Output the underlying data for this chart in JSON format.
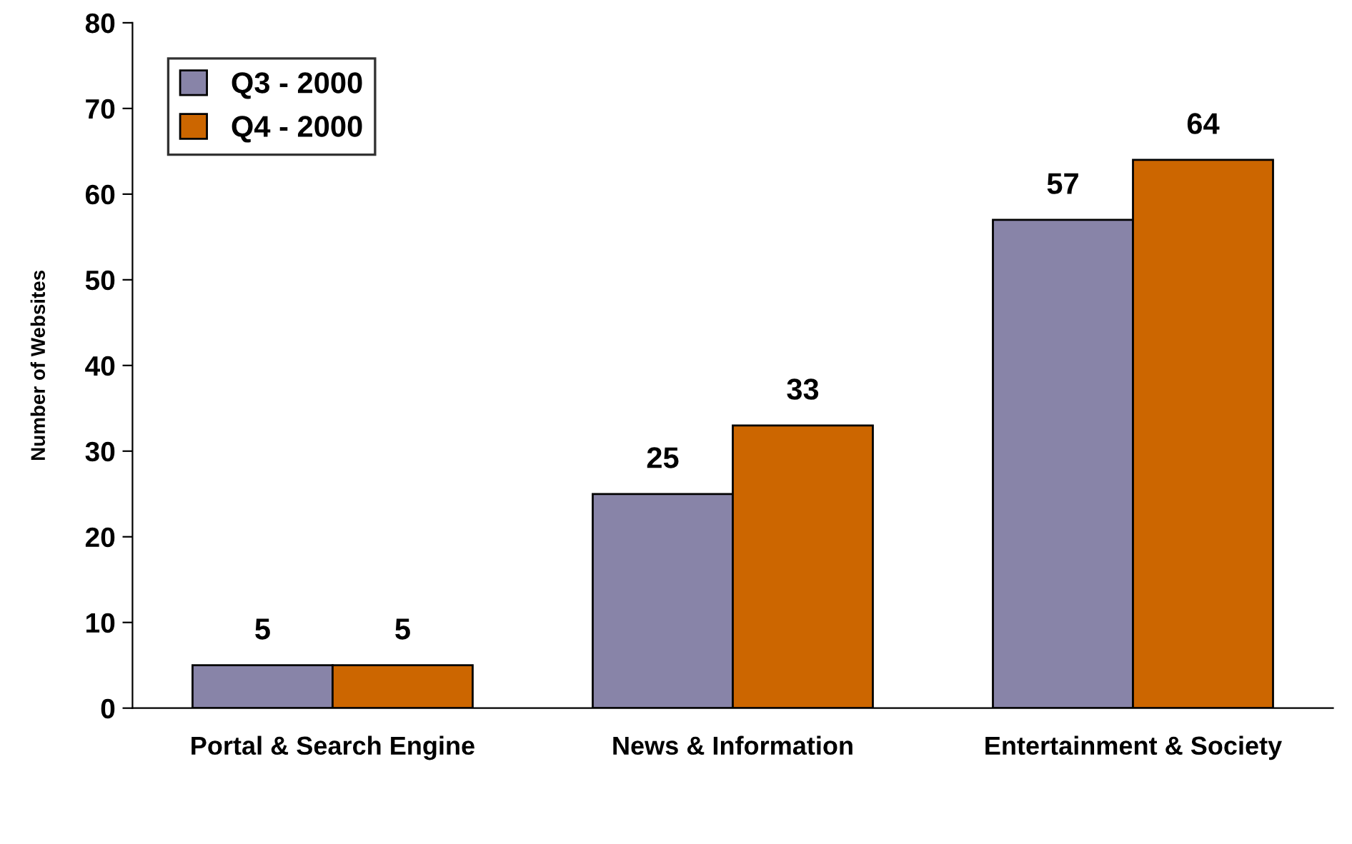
{
  "chart_data": {
    "type": "bar",
    "ylabel": "Number of Websites",
    "categories": [
      "Portal & Search Engine",
      "News & Information",
      "Entertainment & Society"
    ],
    "series": [
      {
        "name": "Q3 - 2000",
        "color": "#8884a8",
        "values": [
          5,
          25,
          57
        ]
      },
      {
        "name": "Q4 - 2000",
        "color": "#cc6600",
        "values": [
          5,
          33,
          64
        ]
      }
    ],
    "ylim": [
      0,
      80
    ],
    "yticks": [
      0,
      10,
      20,
      30,
      40,
      50,
      60,
      70,
      80
    ],
    "data_labels": true,
    "grid": false,
    "legend": "top left"
  }
}
